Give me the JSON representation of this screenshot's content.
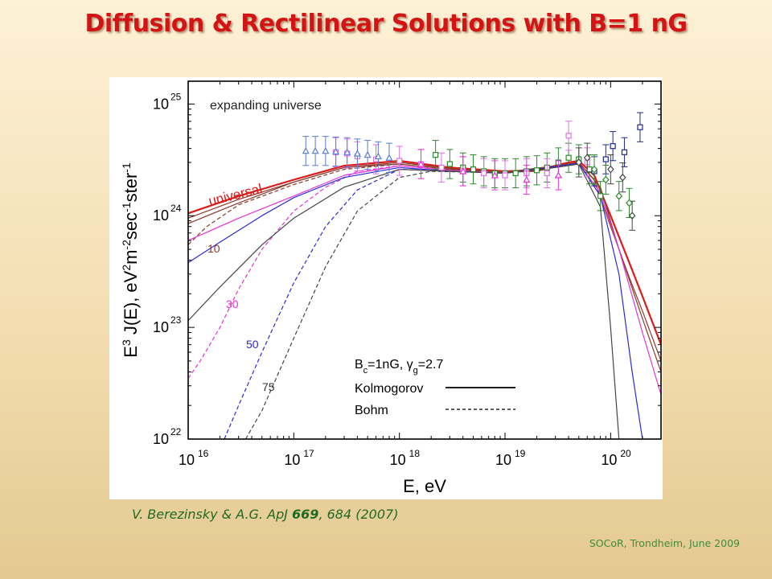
{
  "slide": {
    "title": "Diffusion & Rectilinear Solutions with B=1 nG",
    "citation_pre": "V. Berezinsky & A.G. ApJ ",
    "citation_vol": "669",
    "citation_post": ", 684 (2007)",
    "footer": "SOCoR, Trondheim, June 2009"
  },
  "chart_data": {
    "type": "line",
    "xscale": "log",
    "yscale": "log",
    "xlim": [
      1e+16,
      3e+20
    ],
    "ylim": [
      1e+22,
      1.6e+25
    ],
    "x_ticks": [
      {
        "value": 1e+16,
        "base": "10",
        "exp": "16"
      },
      {
        "value": 1e+17,
        "base": "10",
        "exp": "17"
      },
      {
        "value": 1e+18,
        "base": "10",
        "exp": "18"
      },
      {
        "value": 1e+19,
        "base": "10",
        "exp": "19"
      },
      {
        "value": 1e+20,
        "base": "10",
        "exp": "20"
      }
    ],
    "y_ticks": [
      {
        "value": 1e+22,
        "base": "10",
        "exp": "22"
      },
      {
        "value": 1e+23,
        "base": "10",
        "exp": "23"
      },
      {
        "value": 1e+24,
        "base": "10",
        "exp": "24"
      },
      {
        "value": 1e+25,
        "base": "10",
        "exp": "25"
      }
    ],
    "xlabel": "E, eV",
    "ylabel_parts": [
      {
        "t": "E",
        "sup": false
      },
      {
        "t": "3",
        "sup": true
      },
      {
        "t": " J(E),  eV",
        "sup": false
      },
      {
        "t": "2",
        "sup": true
      },
      {
        "t": "m",
        "sup": false
      },
      {
        "t": "-2",
        "sup": true
      },
      {
        "t": "sec",
        "sup": false
      },
      {
        "t": "-1",
        "sup": true
      },
      {
        "t": "ster",
        "sup": false
      },
      {
        "t": "-1",
        "sup": true
      }
    ],
    "annotations": {
      "expanding": "expanding universe",
      "universal": "universal",
      "d10": "10",
      "d30": "30",
      "d50": "50",
      "d75": "75"
    },
    "legend": {
      "position": "bottom-right",
      "param_B": "B",
      "param_c": "c",
      "param_mid": "=1nG, ",
      "param_gamma": "γ",
      "param_g": "g",
      "param_end": "=2.7",
      "solid": "Kolmogorov",
      "dashed": "Bohm"
    },
    "colors": {
      "red": "#dd1a1a",
      "brown": "#8b3a2a",
      "magenta": "#e632d8",
      "blue": "#2a2ad4",
      "gray": "#444444",
      "green": "#2a8a2a",
      "navy": "#1e2a8c",
      "violet": "#e070e8",
      "lightblue": "#5a7bd8"
    },
    "series": [
      {
        "name": "universal",
        "color": "red",
        "dash": false,
        "width": 2.2,
        "x": [
          1e+16,
          3e+16,
          1e+17,
          3e+17,
          1e+18,
          3e+18,
          1e+19,
          2e+19,
          4e+19,
          5e+19,
          7e+19,
          1e+20,
          1.5e+20,
          2e+20,
          3e+20
        ],
        "y": [
          1.05e+24,
          1.5e+24,
          2.1e+24,
          2.8e+24,
          3.1e+24,
          2.7e+24,
          2.5e+24,
          2.55e+24,
          3e+24,
          3.1e+24,
          2.3e+24,
          1e+24,
          3.8e+23,
          1.9e+23,
          7e+22
        ]
      },
      {
        "name": "universal-bohm",
        "color": "brown",
        "dash": false,
        "width": 1.2,
        "x": [
          1e+16,
          3e+16,
          1e+17,
          3e+17,
          1e+18,
          3e+18,
          1e+19,
          2e+19,
          4e+19,
          5e+19,
          7e+19,
          1e+20,
          1.5e+20,
          2e+20,
          3e+20
        ],
        "y": [
          9.5e+23,
          1.4e+24,
          2e+24,
          2.7e+24,
          3e+24,
          2.65e+24,
          2.45e+24,
          2.5e+24,
          2.9e+24,
          3e+24,
          2.1e+24,
          8e+23,
          2.8e+23,
          1.4e+23,
          5e+22
        ]
      },
      {
        "name": "10-K",
        "color": "brown",
        "dash": false,
        "width": 1.2,
        "x": [
          1e+16,
          3e+16,
          1e+17,
          3e+17,
          1e+18,
          3e+18,
          1e+19,
          3e+19,
          5e+19,
          8e+19,
          1.2e+20,
          2e+20,
          3e+20
        ],
        "y": [
          8.5e+23,
          1.3e+24,
          2e+24,
          2.7e+24,
          2.9e+24,
          2.6e+24,
          2.45e+24,
          2.8e+24,
          3e+24,
          1.8e+24,
          5e+23,
          1.2e+23,
          4e+22
        ]
      },
      {
        "name": "10-B",
        "color": "brown",
        "dash": true,
        "width": 1.2,
        "x": [
          1e+16,
          1.5e+16,
          3e+16,
          1e+17,
          3e+17,
          1e+18,
          3e+18,
          1e+19
        ],
        "y": [
          5.5e+23,
          8e+23,
          1.25e+24,
          1.9e+24,
          2.6e+24,
          2.9e+24,
          2.6e+24,
          2.45e+24
        ]
      },
      {
        "name": "30-K",
        "color": "magenta",
        "dash": false,
        "width": 1.2,
        "x": [
          1e+16,
          3e+16,
          1e+17,
          3e+17,
          1e+18,
          3e+18,
          1e+19,
          3e+19,
          5e+19,
          8e+19,
          1.2e+20,
          2e+20,
          3e+20
        ],
        "y": [
          6e+23,
          9.5e+23,
          1.5e+24,
          2.3e+24,
          2.8e+24,
          2.55e+24,
          2.4e+24,
          2.75e+24,
          2.95e+24,
          1.6e+24,
          5e+23,
          9e+22,
          2.5e+22
        ]
      },
      {
        "name": "30-B",
        "color": "magenta",
        "dash": true,
        "width": 1.2,
        "x": [
          1e+16,
          1.3e+16,
          2e+16,
          3e+16,
          5e+16,
          1e+17,
          2e+17,
          4e+17,
          1e+18,
          3e+18
        ],
        "y": [
          3.5e+22,
          5e+22,
          1e+23,
          2.2e+23,
          5e+23,
          1.1e+24,
          1.8e+24,
          2.5e+24,
          2.8e+24,
          2.55e+24
        ]
      },
      {
        "name": "50-K",
        "color": "blue",
        "dash": false,
        "width": 1.2,
        "x": [
          1e+16,
          2e+16,
          5e+16,
          1e+17,
          3e+17,
          1e+18,
          3e+18,
          1e+19,
          3e+19,
          5e+19,
          8e+19,
          1.2e+20,
          1.6e+20,
          2e+20
        ],
        "y": [
          3.8e+23,
          5.8e+23,
          1e+24,
          1.45e+24,
          2.2e+24,
          2.7e+24,
          2.5e+24,
          2.4e+24,
          2.75e+24,
          2.95e+24,
          1.5e+24,
          3e+23,
          4e+22,
          1e+22
        ]
      },
      {
        "name": "50-B",
        "color": "blue",
        "dash": true,
        "width": 1.2,
        "x": [
          2.2e+16,
          3e+16,
          5e+16,
          1e+17,
          2e+17,
          4e+17,
          1e+18,
          3e+18
        ],
        "y": [
          1e+22,
          2e+22,
          6e+22,
          2.5e+23,
          8e+23,
          1.7e+24,
          2.6e+24,
          2.5e+24
        ]
      },
      {
        "name": "75-K",
        "color": "gray",
        "dash": false,
        "width": 1.2,
        "x": [
          1e+16,
          2e+16,
          5e+16,
          1e+17,
          3e+17,
          1e+18,
          3e+18,
          1e+19,
          3e+19,
          5e+19,
          8e+19,
          1e+20,
          1.2e+20
        ],
        "y": [
          1.15e+23,
          2.3e+23,
          5.5e+23,
          9.5e+23,
          1.8e+24,
          2.6e+24,
          2.5e+24,
          2.4e+24,
          2.7e+24,
          2.9e+24,
          1.2e+24,
          1e+23,
          1e+22
        ]
      },
      {
        "name": "75-B",
        "color": "gray",
        "dash": true,
        "width": 1.2,
        "x": [
          3.5e+16,
          5e+16,
          1e+17,
          2e+17,
          4e+17,
          1e+18,
          2e+18,
          5e+18
        ],
        "y": [
          1e+22,
          1.8e+22,
          8e+22,
          3.5e+23,
          1.1e+24,
          2.2e+24,
          2.5e+24,
          2.45e+24
        ]
      }
    ],
    "data_series": [
      {
        "name": "green-squares",
        "color": "green",
        "marker": "square",
        "points": [
          [
            2.2e+18,
            3.5e+24
          ],
          [
            3e+18,
            2.9e+24
          ],
          [
            4e+18,
            2.7e+24
          ],
          [
            5e+18,
            2.6e+24
          ],
          [
            6.3e+18,
            2.5e+24
          ],
          [
            8e+18,
            2.4e+24
          ],
          [
            1e+19,
            2.4e+24
          ],
          [
            1.26e+19,
            2.4e+24
          ],
          [
            1.6e+19,
            2.5e+24
          ],
          [
            2e+19,
            2.55e+24
          ],
          [
            2.5e+19,
            2.7e+24
          ],
          [
            3.2e+19,
            3e+24
          ],
          [
            4e+19,
            3.3e+24
          ],
          [
            5e+19,
            3.2e+24
          ],
          [
            6.3e+19,
            2.6e+24
          ],
          [
            8e+19,
            1.5e+24
          ]
        ]
      },
      {
        "name": "navy-squares",
        "color": "navy",
        "marker": "square",
        "points": [
          [
            7e+19,
            2.5e+24
          ],
          [
            9e+19,
            3.2e+24
          ],
          [
            1.05e+20,
            4.2e+24
          ],
          [
            1.35e+20,
            3.7e+24
          ],
          [
            1.9e+20,
            6.2e+24
          ]
        ]
      },
      {
        "name": "violet-squares",
        "color": "violet",
        "marker": "square",
        "points": [
          [
            2.5e+17,
            3.7e+24
          ],
          [
            3.2e+17,
            3.6e+24
          ],
          [
            4e+17,
            3.4e+24
          ],
          [
            6e+17,
            3.2e+24
          ],
          [
            1e+18,
            3.1e+24
          ],
          [
            1.6e+18,
            2.9e+24
          ],
          [
            2.5e+18,
            2.7e+24
          ],
          [
            4e+18,
            2.5e+24
          ],
          [
            6.3e+18,
            2.4e+24
          ],
          [
            1e+19,
            2.3e+24
          ],
          [
            1.6e+19,
            2.4e+24
          ],
          [
            2.5e+19,
            2.4e+24
          ],
          [
            4e+19,
            5.2e+24
          ],
          [
            6e+19,
            3e+24
          ]
        ]
      },
      {
        "name": "lightblue-triangles",
        "color": "lightblue",
        "marker": "triangle",
        "points": [
          [
            1.3e+17,
            3.8e+24
          ],
          [
            1.6e+17,
            3.8e+24
          ],
          [
            2e+17,
            3.8e+24
          ],
          [
            2.5e+17,
            3.75e+24
          ],
          [
            3.2e+17,
            3.7e+24
          ],
          [
            4e+17,
            3.6e+24
          ],
          [
            5e+17,
            3.5e+24
          ],
          [
            6.3e+17,
            3.4e+24
          ],
          [
            8e+17,
            3.3e+24
          ]
        ]
      },
      {
        "name": "gray-diamonds",
        "color": "gray",
        "marker": "diamond",
        "points": [
          [
            5e+19,
            3e+24
          ],
          [
            6e+19,
            3.3e+24
          ],
          [
            1e+20,
            2.6e+24
          ],
          [
            1.3e+20,
            2.2e+24
          ],
          [
            1.6e+20,
            1e+24
          ]
        ]
      },
      {
        "name": "green-diamonds",
        "color": "green",
        "marker": "diamond",
        "points": [
          [
            7e+19,
            2.6e+24
          ],
          [
            9e+19,
            2.1e+24
          ],
          [
            1.2e+20,
            1.5e+24
          ],
          [
            1.5e+20,
            1.3e+24
          ]
        ]
      },
      {
        "name": "magenta-triangles",
        "color": "magenta",
        "marker": "triangle",
        "points": [
          [
            1.6e+18,
            2.9e+24
          ],
          [
            4e+18,
            2.5e+24
          ],
          [
            8e+18,
            2.3e+24
          ],
          [
            1.6e+19,
            2.1e+24
          ],
          [
            3.2e+19,
            2.3e+24
          ]
        ]
      }
    ]
  }
}
